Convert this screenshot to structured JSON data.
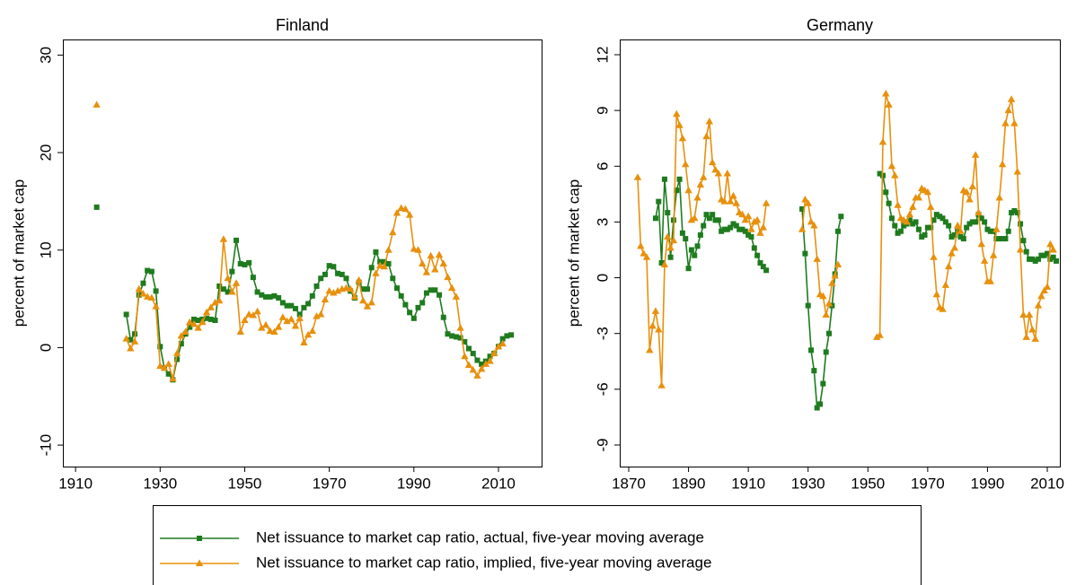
{
  "chart_data": [
    {
      "type": "line",
      "title": "Finland",
      "y_label": "percent of market cap",
      "xlim": [
        1907,
        2020.2
      ],
      "xticks": [
        1910,
        1930,
        1950,
        1970,
        1990,
        2010
      ],
      "ylim": [
        -12.2,
        31.6
      ],
      "yticks": [
        -10,
        0,
        10,
        20,
        30
      ],
      "x": [
        1915,
        1916,
        1917,
        1918,
        1919,
        1920,
        1921,
        1922,
        1923,
        1924,
        1925,
        1926,
        1927,
        1928,
        1929,
        1930,
        1931,
        1932,
        1933,
        1934,
        1935,
        1936,
        1937,
        1938,
        1939,
        1940,
        1941,
        1942,
        1943,
        1944,
        1945,
        1946,
        1947,
        1948,
        1949,
        1950,
        1951,
        1952,
        1953,
        1954,
        1955,
        1956,
        1957,
        1958,
        1959,
        1960,
        1961,
        1962,
        1963,
        1964,
        1965,
        1966,
        1967,
        1968,
        1969,
        1970,
        1971,
        1972,
        1973,
        1974,
        1975,
        1976,
        1977,
        1978,
        1979,
        1980,
        1981,
        1982,
        1983,
        1984,
        1985,
        1986,
        1987,
        1988,
        1989,
        1990,
        1991,
        1992,
        1993,
        1994,
        1995,
        1996,
        1997,
        1998,
        1999,
        2000,
        2001,
        2002,
        2003,
        2004,
        2005,
        2006,
        2007,
        2008,
        2009,
        2010,
        2011,
        2012,
        2013
      ],
      "series": [
        {
          "name": "Net issuance to market cap ratio, actual, five-year moving average",
          "color": "#1e7b1e",
          "marker": "square",
          "values": [
            14.4,
            null,
            null,
            null,
            null,
            null,
            null,
            3.4,
            0.8,
            1.4,
            5.4,
            6.6,
            7.9,
            7.8,
            5.8,
            0.1,
            -2.1,
            -2.7,
            -3.3,
            -1.2,
            0.4,
            1.4,
            2.1,
            2.9,
            2.8,
            2.9,
            3.0,
            2.9,
            2.8,
            6.3,
            6.0,
            5.7,
            7.8,
            11.0,
            8.6,
            8.5,
            8.7,
            7.2,
            5.7,
            5.4,
            5.2,
            5.2,
            5.3,
            5.1,
            4.6,
            4.3,
            4.3,
            4.0,
            3.4,
            4.1,
            4.5,
            5.3,
            6.3,
            7.1,
            7.5,
            8.4,
            8.3,
            7.6,
            7.5,
            7.1,
            5.8,
            5.1,
            6.7,
            6.0,
            6.0,
            8.2,
            9.8,
            8.8,
            8.8,
            8.6,
            7.1,
            6.1,
            5.3,
            4.4,
            3.6,
            3.0,
            4.1,
            4.6,
            5.6,
            5.9,
            5.9,
            5.4,
            3.1,
            1.4,
            1.2,
            1.1,
            1.0,
            0.6,
            -0.1,
            -0.6,
            -1.3,
            -1.7,
            -1.4,
            -0.9,
            -0.6,
            0.1,
            0.9,
            1.2,
            1.3
          ]
        },
        {
          "name": "Net issuance to market cap ratio, implied, five-year moving average",
          "color": "#e8900c",
          "marker": "triangle",
          "values": [
            24.9,
            null,
            null,
            null,
            null,
            null,
            null,
            0.9,
            -0.1,
            0.6,
            6.0,
            5.5,
            5.2,
            5.1,
            4.2,
            -1.9,
            -2.1,
            -1.7,
            -3.2,
            -0.6,
            1.2,
            1.6,
            2.6,
            2.4,
            2.0,
            2.6,
            3.6,
            4.1,
            4.6,
            4.8,
            11.1,
            7.1,
            5.7,
            6.6,
            1.6,
            2.8,
            3.4,
            3.3,
            3.7,
            2.0,
            2.3,
            1.7,
            1.6,
            2.1,
            3.1,
            2.7,
            2.9,
            2.2,
            3.0,
            0.5,
            1.3,
            1.7,
            3.2,
            3.4,
            4.9,
            5.8,
            5.6,
            5.8,
            6.0,
            6.1,
            6.0,
            5.2,
            6.9,
            4.8,
            4.2,
            4.6,
            7.6,
            8.4,
            8.3,
            10.0,
            11.8,
            13.8,
            14.3,
            14.2,
            13.6,
            10.1,
            10.0,
            8.6,
            7.7,
            9.4,
            8.0,
            9.5,
            8.6,
            7.2,
            6.1,
            5.2,
            2.0,
            -0.9,
            -1.8,
            -2.3,
            -2.9,
            -2.2,
            -1.7,
            -1.4,
            -0.6,
            0.1,
            0.4,
            null,
            null
          ]
        }
      ]
    },
    {
      "type": "line",
      "title": "Germany",
      "y_label": "percent of market cap",
      "xlim": [
        1867,
        2014.2
      ],
      "xticks": [
        1870,
        1890,
        1910,
        1930,
        1950,
        1970,
        1990,
        2010
      ],
      "ylim": [
        -10.16,
        12.82
      ],
      "yticks": [
        -9,
        -6,
        -3,
        0,
        3,
        6,
        9,
        12
      ],
      "x": [
        1873,
        1874,
        1875,
        1876,
        1877,
        1878,
        1879,
        1880,
        1881,
        1882,
        1883,
        1884,
        1885,
        1886,
        1887,
        1888,
        1889,
        1890,
        1891,
        1892,
        1893,
        1894,
        1895,
        1896,
        1897,
        1898,
        1899,
        1900,
        1901,
        1902,
        1903,
        1904,
        1905,
        1906,
        1907,
        1908,
        1909,
        1910,
        1911,
        1912,
        1913,
        1914,
        1915,
        1916,
        1917,
        1918,
        1919,
        1920,
        1921,
        1922,
        1923,
        1924,
        1925,
        1926,
        1927,
        1928,
        1929,
        1930,
        1931,
        1932,
        1933,
        1934,
        1935,
        1936,
        1937,
        1938,
        1939,
        1940,
        1941,
        1942,
        1943,
        1944,
        1945,
        1946,
        1947,
        1948,
        1949,
        1950,
        1951,
        1952,
        1953,
        1954,
        1955,
        1956,
        1957,
        1958,
        1959,
        1960,
        1961,
        1962,
        1963,
        1964,
        1965,
        1966,
        1967,
        1968,
        1969,
        1970,
        1971,
        1972,
        1973,
        1974,
        1975,
        1976,
        1977,
        1978,
        1979,
        1980,
        1981,
        1982,
        1983,
        1984,
        1985,
        1986,
        1987,
        1988,
        1989,
        1990,
        1991,
        1992,
        1993,
        1994,
        1995,
        1996,
        1997,
        1998,
        1999,
        2000,
        2001,
        2002,
        2003,
        2004,
        2005,
        2006,
        2007,
        2008,
        2009,
        2010,
        2011,
        2012,
        2013
      ],
      "series": [
        {
          "color": "#1e7b1e",
          "marker": "square",
          "values": [
            null,
            null,
            null,
            null,
            null,
            null,
            3.2,
            4.1,
            0.8,
            5.3,
            3.5,
            1.1,
            3.1,
            4.7,
            5.3,
            2.4,
            2.1,
            0.5,
            1.5,
            1.2,
            1.7,
            2.3,
            2.8,
            3.4,
            3.2,
            3.4,
            3.1,
            3.1,
            2.5,
            2.6,
            2.6,
            2.7,
            2.9,
            2.8,
            2.6,
            2.6,
            2.5,
            2.3,
            2.2,
            1.6,
            1.2,
            0.8,
            0.6,
            0.4,
            null,
            null,
            null,
            null,
            null,
            null,
            null,
            null,
            null,
            null,
            null,
            3.7,
            1.3,
            -1.5,
            -3.9,
            -5.0,
            -7.0,
            -6.8,
            -5.7,
            -4.0,
            -3.0,
            -1.5,
            0.2,
            2.5,
            3.3,
            null,
            null,
            null,
            null,
            null,
            null,
            null,
            null,
            null,
            null,
            null,
            null,
            5.6,
            5.5,
            4.6,
            4.0,
            3.2,
            2.8,
            2.4,
            2.5,
            2.8,
            2.9,
            3.1,
            2.9,
            3.0,
            2.6,
            2.2,
            2.3,
            2.7,
            2.7,
            3.1,
            3.4,
            3.3,
            3.2,
            3.0,
            2.8,
            2.2,
            2.3,
            2.5,
            2.2,
            2.1,
            2.7,
            2.9,
            3.0,
            3.0,
            3.4,
            3.2,
            3.0,
            2.6,
            2.5,
            2.5,
            2.1,
            2.1,
            2.1,
            2.1,
            2.5,
            3.5,
            3.6,
            3.5,
            2.9,
            2.0,
            1.4,
            1.0,
            1.0,
            0.9,
            1.0,
            1.2,
            1.2,
            1.3,
            1.0,
            1.1,
            0.9
          ]
        },
        {
          "color": "#e8900c",
          "marker": "triangle",
          "values": [
            5.4,
            1.7,
            1.3,
            1.1,
            -3.9,
            -2.6,
            -1.8,
            -2.8,
            -5.8,
            0.7,
            2.2,
            1.6,
            2.0,
            8.8,
            8.2,
            7.5,
            6.1,
            4.7,
            3.1,
            3.2,
            4.3,
            5.0,
            5.4,
            7.6,
            8.4,
            6.2,
            5.8,
            5.6,
            4.2,
            4.1,
            5.6,
            4.1,
            4.4,
            4.0,
            3.5,
            3.4,
            3.1,
            3.3,
            2.6,
            3.0,
            3.1,
            2.4,
            2.7,
            4.0,
            null,
            null,
            null,
            null,
            null,
            null,
            null,
            null,
            null,
            null,
            null,
            2.6,
            4.2,
            4.0,
            3.0,
            2.8,
            1.0,
            -0.9,
            -1.0,
            -2.0,
            -1.4,
            -0.3,
            0.1,
            0.7,
            null,
            null,
            null,
            null,
            null,
            null,
            null,
            null,
            null,
            null,
            null,
            null,
            -3.2,
            -3.1,
            7.3,
            9.9,
            9.3,
            6.0,
            5.5,
            3.9,
            3.2,
            3.1,
            3.0,
            3.4,
            3.8,
            4.3,
            4.3,
            4.8,
            4.7,
            4.6,
            3.8,
            1.1,
            -0.9,
            -1.6,
            -1.7,
            -0.4,
            0.6,
            1.3,
            1.6,
            2.8,
            2.5,
            4.7,
            4.6,
            4.2,
            4.9,
            6.6,
            3.5,
            1.8,
            0.9,
            -0.2,
            -0.2,
            1.2,
            2.6,
            4.3,
            6.1,
            8.3,
            9.0,
            9.6,
            8.3,
            5.7,
            1.5,
            -2.0,
            -3.2,
            -2.0,
            -2.8,
            -3.3,
            -1.5,
            -1.0,
            -0.7,
            -0.5,
            1.8,
            1.5,
            null
          ]
        }
      ]
    }
  ]
}
